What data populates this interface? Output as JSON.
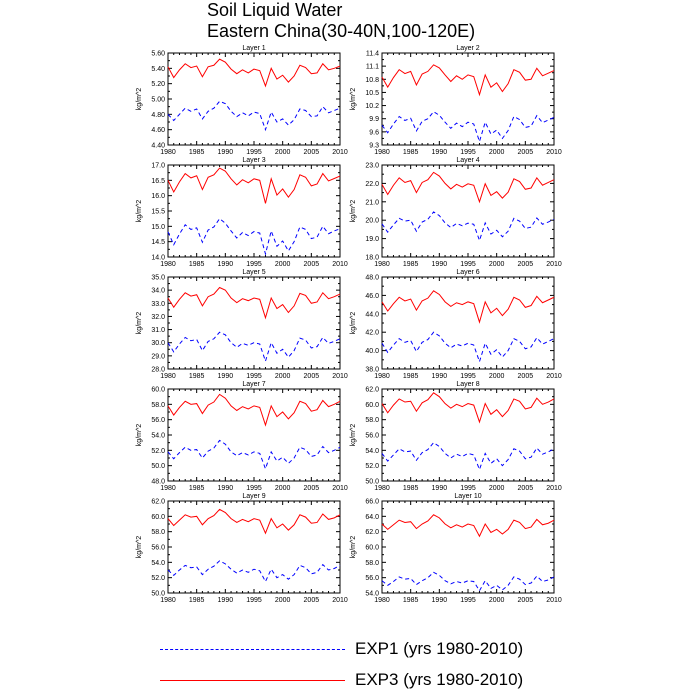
{
  "title": {
    "line1": "Soil Liquid Water",
    "line2": "Eastern China(30-40N,100-120E)"
  },
  "colors": {
    "exp1": "#0000ff",
    "exp3": "#ff0000"
  },
  "legend": {
    "exp1": "EXP1 (yrs 1980-2010)",
    "exp3": "EXP3 (yrs 1980-2010)"
  },
  "chart_data": [
    {
      "type": "line",
      "title": "Layer 1",
      "ylabel": "kg/m^2",
      "ylim": [
        4.4,
        5.6
      ],
      "yticks": [
        "4.40",
        "4.60",
        "4.80",
        "5.00",
        "5.20",
        "5.40",
        "5.60"
      ],
      "xlim": [
        1980,
        2010
      ],
      "xticks": [
        "1980",
        "1985",
        "1990",
        "1995",
        "2000",
        "2005",
        "2010"
      ],
      "series": [
        {
          "name": "EXP3",
          "style": "solid",
          "x_start": 1980,
          "values": [
            5.42,
            5.28,
            5.38,
            5.46,
            5.41,
            5.43,
            5.29,
            5.42,
            5.44,
            5.52,
            5.48,
            5.39,
            5.33,
            5.38,
            5.34,
            5.39,
            5.37,
            5.17,
            5.4,
            5.26,
            5.31,
            5.22,
            5.3,
            5.44,
            5.41,
            5.33,
            5.34,
            5.46,
            5.38,
            5.4,
            5.43
          ]
        },
        {
          "name": "EXP1",
          "style": "dashed",
          "x_start": 1980,
          "values": [
            4.8,
            4.72,
            4.8,
            4.88,
            4.84,
            4.87,
            4.74,
            4.84,
            4.88,
            4.97,
            4.94,
            4.84,
            4.77,
            4.82,
            4.78,
            4.83,
            4.81,
            4.6,
            4.83,
            4.7,
            4.74,
            4.66,
            4.73,
            4.87,
            4.85,
            4.77,
            4.78,
            4.9,
            4.82,
            4.85,
            4.88
          ]
        }
      ]
    },
    {
      "type": "line",
      "title": "Layer 2",
      "ylabel": "kg/m^2",
      "ylim": [
        9.3,
        11.4
      ],
      "yticks": [
        "9.3",
        "9.6",
        "9.9",
        "10.2",
        "10.5",
        "10.8",
        "11.1",
        "11.4"
      ],
      "xlim": [
        1980,
        2010
      ],
      "xticks": [
        "1980",
        "1985",
        "1990",
        "1995",
        "2000",
        "2005",
        "2010"
      ],
      "series": [
        {
          "name": "EXP3",
          "style": "solid",
          "x_start": 1980,
          "values": [
            10.85,
            10.62,
            10.84,
            11.02,
            10.93,
            10.98,
            10.67,
            10.92,
            10.98,
            11.13,
            11.06,
            10.9,
            10.75,
            10.88,
            10.8,
            10.9,
            10.86,
            10.45,
            10.9,
            10.62,
            10.72,
            10.52,
            10.7,
            11.02,
            10.96,
            10.78,
            10.8,
            11.05,
            10.88,
            10.94,
            11.0
          ]
        },
        {
          "name": "EXP1",
          "style": "dashed",
          "x_start": 1980,
          "values": [
            9.75,
            9.58,
            9.78,
            9.95,
            9.86,
            9.91,
            9.62,
            9.84,
            9.9,
            10.06,
            9.98,
            9.82,
            9.68,
            9.8,
            9.72,
            9.82,
            9.78,
            9.38,
            9.82,
            9.55,
            9.64,
            9.45,
            9.63,
            9.95,
            9.88,
            9.7,
            9.73,
            9.97,
            9.81,
            9.87,
            9.93
          ]
        }
      ]
    },
    {
      "type": "line",
      "title": "Layer 3",
      "ylabel": "kg/m^2",
      "ylim": [
        14.0,
        17.0
      ],
      "yticks": [
        "14.0",
        "14.5",
        "15.0",
        "15.5",
        "16.0",
        "16.5",
        "17.0"
      ],
      "xlim": [
        1980,
        2010
      ],
      "xticks": [
        "1980",
        "1985",
        "1990",
        "1995",
        "2000",
        "2005",
        "2010"
      ],
      "series": [
        {
          "name": "EXP3",
          "style": "solid",
          "x_start": 1980,
          "values": [
            16.5,
            16.12,
            16.45,
            16.72,
            16.58,
            16.65,
            16.2,
            16.6,
            16.68,
            16.9,
            16.8,
            16.55,
            16.35,
            16.52,
            16.42,
            16.55,
            16.5,
            15.75,
            16.55,
            16.02,
            16.22,
            15.95,
            16.2,
            16.68,
            16.6,
            16.32,
            16.38,
            16.72,
            16.48,
            16.56,
            16.64
          ]
        },
        {
          "name": "EXP1",
          "style": "dashed",
          "x_start": 1980,
          "values": [
            14.82,
            14.4,
            14.75,
            15.05,
            14.9,
            14.95,
            14.48,
            14.88,
            14.98,
            15.25,
            15.1,
            14.85,
            14.62,
            14.8,
            14.7,
            14.83,
            14.78,
            14.1,
            14.85,
            14.35,
            14.52,
            14.2,
            14.5,
            14.98,
            14.9,
            14.6,
            14.65,
            15.0,
            14.76,
            14.85,
            14.92
          ]
        }
      ]
    },
    {
      "type": "line",
      "title": "Layer 4",
      "ylabel": "kg/m^2",
      "ylim": [
        18.0,
        23.0
      ],
      "yticks": [
        "18.0",
        "19.0",
        "20.0",
        "21.0",
        "22.0",
        "23.0"
      ],
      "xlim": [
        1980,
        2010
      ],
      "xticks": [
        "1980",
        "1985",
        "1990",
        "1995",
        "2000",
        "2005",
        "2010"
      ],
      "series": [
        {
          "name": "EXP3",
          "style": "solid",
          "x_start": 1980,
          "values": [
            21.95,
            21.4,
            21.9,
            22.3,
            22.05,
            22.15,
            21.5,
            22.05,
            22.2,
            22.6,
            22.4,
            22.0,
            21.7,
            21.95,
            21.8,
            21.98,
            21.9,
            21.0,
            21.98,
            21.35,
            21.55,
            21.2,
            21.52,
            22.25,
            22.1,
            21.68,
            21.75,
            22.3,
            21.9,
            22.05,
            22.2
          ]
        },
        {
          "name": "EXP1",
          "style": "dashed",
          "x_start": 1980,
          "values": [
            19.8,
            19.35,
            19.75,
            20.1,
            19.95,
            20.0,
            19.4,
            19.9,
            20.05,
            20.45,
            20.25,
            19.85,
            19.6,
            19.82,
            19.7,
            19.84,
            19.78,
            18.9,
            19.85,
            19.25,
            19.45,
            19.1,
            19.4,
            20.1,
            19.95,
            19.55,
            19.62,
            20.12,
            19.78,
            19.9,
            20.05
          ]
        }
      ]
    },
    {
      "type": "line",
      "title": "Layer 5",
      "ylabel": "kg/m^2",
      "ylim": [
        28.0,
        35.0
      ],
      "yticks": [
        "28.0",
        "29.0",
        "30.0",
        "31.0",
        "32.0",
        "33.0",
        "34.0",
        "35.0"
      ],
      "xlim": [
        1980,
        2010
      ],
      "xticks": [
        "1980",
        "1985",
        "1990",
        "1995",
        "2000",
        "2005",
        "2010"
      ],
      "series": [
        {
          "name": "EXP3",
          "style": "solid",
          "x_start": 1980,
          "values": [
            33.4,
            32.7,
            33.3,
            33.8,
            33.55,
            33.65,
            32.8,
            33.5,
            33.7,
            34.2,
            34.0,
            33.4,
            33.05,
            33.35,
            33.2,
            33.4,
            33.3,
            31.9,
            33.4,
            32.6,
            32.9,
            32.3,
            32.8,
            33.75,
            33.6,
            33.0,
            33.1,
            33.8,
            33.35,
            33.5,
            33.7
          ]
        },
        {
          "name": "EXP1",
          "style": "dashed",
          "x_start": 1980,
          "values": [
            30.0,
            29.3,
            29.9,
            30.4,
            30.15,
            30.25,
            29.4,
            30.1,
            30.3,
            30.8,
            30.6,
            30.0,
            29.65,
            29.95,
            29.8,
            30.0,
            29.9,
            28.6,
            30.0,
            29.2,
            29.5,
            28.9,
            29.4,
            30.35,
            30.2,
            29.6,
            29.7,
            30.4,
            29.95,
            30.1,
            30.3
          ]
        }
      ]
    },
    {
      "type": "line",
      "title": "Layer 6",
      "ylabel": "kg/m^2",
      "ylim": [
        38.0,
        48.0
      ],
      "yticks": [
        "38.0",
        "40.0",
        "42.0",
        "44.0",
        "46.0",
        "48.0"
      ],
      "xlim": [
        1980,
        2010
      ],
      "xticks": [
        "1980",
        "1985",
        "1990",
        "1995",
        "2000",
        "2005",
        "2010"
      ],
      "series": [
        {
          "name": "EXP3",
          "style": "solid",
          "x_start": 1980,
          "values": [
            45.3,
            44.3,
            45.1,
            45.8,
            45.4,
            45.6,
            44.4,
            45.4,
            45.7,
            46.5,
            46.1,
            45.3,
            44.8,
            45.2,
            45.0,
            45.3,
            45.1,
            43.1,
            45.3,
            44.1,
            44.6,
            43.8,
            44.5,
            45.8,
            45.5,
            44.7,
            44.9,
            45.9,
            45.2,
            45.5,
            45.8
          ]
        },
        {
          "name": "EXP1",
          "style": "dashed",
          "x_start": 1980,
          "values": [
            40.8,
            39.8,
            40.6,
            41.3,
            40.9,
            41.1,
            39.9,
            40.9,
            41.2,
            42.0,
            41.6,
            40.8,
            40.3,
            40.7,
            40.5,
            40.8,
            40.6,
            38.8,
            40.8,
            39.6,
            40.1,
            39.3,
            40.0,
            41.3,
            41.0,
            40.2,
            40.4,
            41.4,
            40.7,
            41.0,
            41.3
          ]
        }
      ]
    },
    {
      "type": "line",
      "title": "Layer 7",
      "ylabel": "kg/m^2",
      "ylim": [
        48.0,
        60.0
      ],
      "yticks": [
        "48.0",
        "50.0",
        "52.0",
        "54.0",
        "56.0",
        "58.0",
        "60.0"
      ],
      "xlim": [
        1980,
        2010
      ],
      "xticks": [
        "1980",
        "1985",
        "1990",
        "1995",
        "2000",
        "2005",
        "2010"
      ],
      "series": [
        {
          "name": "EXP3",
          "style": "solid",
          "x_start": 1980,
          "values": [
            57.8,
            56.6,
            57.6,
            58.4,
            58.0,
            58.1,
            56.8,
            57.9,
            58.3,
            59.3,
            58.8,
            57.8,
            57.2,
            57.7,
            57.4,
            57.8,
            57.6,
            55.3,
            57.8,
            56.4,
            57.0,
            56.1,
            56.9,
            58.4,
            58.1,
            57.1,
            57.3,
            58.5,
            57.7,
            58.0,
            58.4
          ]
        },
        {
          "name": "EXP1",
          "style": "dashed",
          "x_start": 1980,
          "values": [
            51.8,
            50.9,
            51.7,
            52.4,
            52.0,
            52.1,
            51.0,
            51.9,
            52.3,
            53.3,
            52.8,
            51.8,
            51.3,
            51.7,
            51.4,
            51.8,
            51.6,
            49.6,
            51.8,
            50.6,
            51.1,
            50.3,
            51.0,
            52.4,
            52.1,
            51.2,
            51.4,
            52.5,
            51.7,
            52.0,
            52.4
          ]
        }
      ]
    },
    {
      "type": "line",
      "title": "Layer 8",
      "ylabel": "kg/m^2",
      "ylim": [
        50.0,
        62.0
      ],
      "yticks": [
        "50.0",
        "52.0",
        "54.0",
        "56.0",
        "58.0",
        "60.0",
        "62.0"
      ],
      "xlim": [
        1980,
        2010
      ],
      "xticks": [
        "1980",
        "1985",
        "1990",
        "1995",
        "2000",
        "2005",
        "2010"
      ],
      "series": [
        {
          "name": "EXP3",
          "style": "solid",
          "x_start": 1980,
          "values": [
            60.1,
            58.9,
            59.9,
            60.7,
            60.3,
            60.4,
            59.1,
            60.2,
            60.6,
            61.5,
            61.0,
            60.1,
            59.5,
            60.0,
            59.7,
            60.1,
            59.9,
            57.7,
            60.1,
            58.7,
            59.3,
            58.4,
            59.2,
            60.7,
            60.4,
            59.4,
            59.6,
            60.8,
            60.0,
            60.3,
            60.7
          ]
        },
        {
          "name": "EXP1",
          "style": "dashed",
          "x_start": 1980,
          "values": [
            53.6,
            52.6,
            53.4,
            54.2,
            53.8,
            53.9,
            52.7,
            53.7,
            54.1,
            55.0,
            54.5,
            53.6,
            53.0,
            53.5,
            53.2,
            53.6,
            53.4,
            51.5,
            53.6,
            52.3,
            52.9,
            52.0,
            52.8,
            54.2,
            53.9,
            52.9,
            53.1,
            54.3,
            53.5,
            53.8,
            54.2
          ]
        }
      ]
    },
    {
      "type": "line",
      "title": "Layer 9",
      "ylabel": "kg/m^2",
      "ylim": [
        50.0,
        62.0
      ],
      "yticks": [
        "50.0",
        "52.0",
        "54.0",
        "56.0",
        "58.0",
        "60.0",
        "62.0"
      ],
      "xlim": [
        1980,
        2010
      ],
      "xticks": [
        "1980",
        "1985",
        "1990",
        "1995",
        "2000",
        "2005",
        "2010"
      ],
      "series": [
        {
          "name": "EXP3",
          "style": "solid",
          "x_start": 1980,
          "values": [
            59.7,
            58.8,
            59.5,
            60.2,
            59.9,
            60.0,
            58.9,
            59.7,
            60.1,
            60.9,
            60.5,
            59.7,
            59.2,
            59.6,
            59.3,
            59.7,
            59.5,
            57.8,
            59.7,
            58.5,
            59.0,
            58.2,
            58.9,
            60.2,
            59.9,
            59.1,
            59.2,
            60.3,
            59.6,
            59.8,
            60.2
          ]
        },
        {
          "name": "EXP1",
          "style": "dashed",
          "x_start": 1980,
          "values": [
            53.0,
            52.3,
            53.0,
            53.6,
            53.3,
            53.4,
            52.4,
            53.1,
            53.5,
            54.2,
            53.8,
            53.1,
            52.6,
            53.0,
            52.7,
            53.1,
            52.9,
            51.5,
            53.1,
            52.0,
            52.4,
            51.8,
            52.4,
            53.6,
            53.3,
            52.5,
            52.7,
            53.7,
            53.0,
            53.2,
            53.6
          ]
        }
      ]
    },
    {
      "type": "line",
      "title": "Layer 10",
      "ylabel": "kg/m^2",
      "ylim": [
        54.0,
        66.0
      ],
      "yticks": [
        "54.0",
        "56.0",
        "58.0",
        "60.0",
        "62.0",
        "64.0",
        "66.0"
      ],
      "xlim": [
        1980,
        2010
      ],
      "xticks": [
        "1980",
        "1985",
        "1990",
        "1995",
        "2000",
        "2005",
        "2010"
      ],
      "series": [
        {
          "name": "EXP3",
          "style": "solid",
          "x_start": 1980,
          "values": [
            63.0,
            62.3,
            62.9,
            63.5,
            63.2,
            63.3,
            62.4,
            63.0,
            63.4,
            64.2,
            63.8,
            63.0,
            62.5,
            62.9,
            62.6,
            63.0,
            62.8,
            61.4,
            63.0,
            61.9,
            62.3,
            61.7,
            62.3,
            63.5,
            63.2,
            62.4,
            62.6,
            63.6,
            62.9,
            63.1,
            63.5
          ]
        },
        {
          "name": "EXP1",
          "style": "dashed",
          "x_start": 1980,
          "values": [
            55.6,
            55.0,
            55.5,
            56.1,
            55.8,
            55.9,
            55.1,
            55.6,
            56.0,
            56.7,
            56.3,
            55.6,
            55.2,
            55.5,
            55.3,
            55.6,
            55.5,
            54.3,
            55.6,
            54.6,
            55.0,
            54.4,
            55.0,
            56.1,
            55.8,
            55.1,
            55.3,
            56.2,
            55.5,
            55.7,
            56.1
          ]
        }
      ]
    }
  ]
}
